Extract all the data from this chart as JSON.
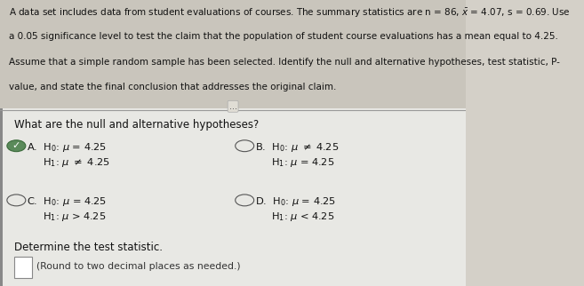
{
  "bg_top": "#d4d0c8",
  "bg_bottom": "#e8e8e8",
  "question": "What are the null and alternative hypotheses?",
  "determine_text": "Determine the test statistic.",
  "round_text": "(Round to two decimal places as needed.)",
  "header_bg": "#c9c5bc",
  "body_bg": "#e8e8e4",
  "divider_color": "#999999",
  "selected_color": "#5a8a5a",
  "unselected_color": "#555555",
  "text_color": "#111111"
}
